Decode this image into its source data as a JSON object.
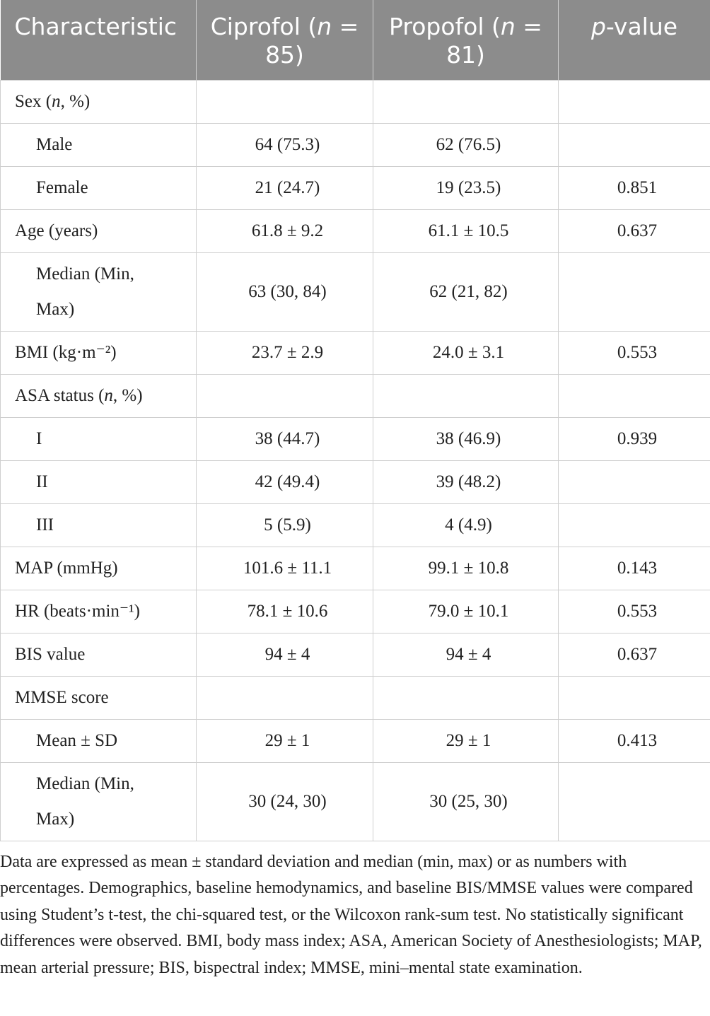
{
  "table": {
    "header": [
      [
        {
          "text": "Characteristic"
        }
      ],
      [
        {
          "text": "Ciprofol ("
        },
        {
          "text": "n",
          "italic": true
        },
        {
          "text": " = 85)"
        }
      ],
      [
        {
          "text": "Propofol ("
        },
        {
          "text": "n",
          "italic": true
        },
        {
          "text": " = 81)"
        }
      ],
      [
        {
          "text": "p",
          "italic": true
        },
        {
          "text": "-value"
        }
      ]
    ],
    "rows": [
      {
        "cells": [
          [
            {
              "text": "Sex ("
            },
            {
              "text": "n",
              "italic": true
            },
            {
              "text": ", %)"
            }
          ],
          null,
          null,
          null
        ]
      },
      {
        "indent": true,
        "cells": [
          "Male",
          "64 (75.3)",
          "62 (76.5)",
          null
        ]
      },
      {
        "indent": true,
        "cells": [
          "Female",
          "21 (24.7)",
          "19 (23.5)",
          "0.851"
        ]
      },
      {
        "cells": [
          "Age (years)",
          "61.8 ± 9.2",
          "61.1 ± 10.5",
          "0.637"
        ]
      },
      {
        "indent": true,
        "cells": [
          "Median (Min, Max)",
          "63 (30, 84)",
          "62 (21, 82)",
          null
        ]
      },
      {
        "cells": [
          "BMI (kg·m⁻²)",
          "23.7 ± 2.9",
          "24.0 ± 3.1",
          "0.553"
        ]
      },
      {
        "cells": [
          [
            {
              "text": "ASA status ("
            },
            {
              "text": "n",
              "italic": true
            },
            {
              "text": ", %)"
            }
          ],
          null,
          null,
          null
        ]
      },
      {
        "indent": true,
        "cells": [
          "I",
          "38 (44.7)",
          "38 (46.9)",
          "0.939"
        ]
      },
      {
        "indent": true,
        "cells": [
          "II",
          "42 (49.4)",
          "39 (48.2)",
          null
        ]
      },
      {
        "indent": true,
        "cells": [
          "III",
          "5 (5.9)",
          "4 (4.9)",
          null
        ]
      },
      {
        "cells": [
          "MAP (mmHg)",
          "101.6 ± 11.1",
          "99.1 ± 10.8",
          "0.143"
        ]
      },
      {
        "cells": [
          "HR (beats·min⁻¹)",
          "78.1 ± 10.6",
          "79.0 ± 10.1",
          "0.553"
        ]
      },
      {
        "cells": [
          "BIS value",
          "94 ± 4",
          "94 ± 4",
          "0.637"
        ]
      },
      {
        "cells": [
          "MMSE score",
          null,
          null,
          null
        ]
      },
      {
        "indent": true,
        "cells": [
          "Mean ± SD",
          "29 ± 1",
          "29 ± 1",
          "0.413"
        ]
      },
      {
        "indent": true,
        "cells": [
          "Median (Min, Max)",
          "30 (24, 30)",
          "30 (25, 30)",
          null
        ]
      }
    ],
    "footnote": "Data are expressed as mean ± standard deviation and median (min, max) or as numbers with percentages. Demographics, baseline hemodynamics, and baseline BIS/MMSE values were compared using Student’s t-test, the chi-squared test, or the Wilcoxon rank-sum test. No statistically significant differences were observed. BMI, body mass index; ASA, American Society of Anesthesiologists; MAP, mean arterial pressure; BIS, bispectral index; MMSE, mini–mental state examination."
  }
}
